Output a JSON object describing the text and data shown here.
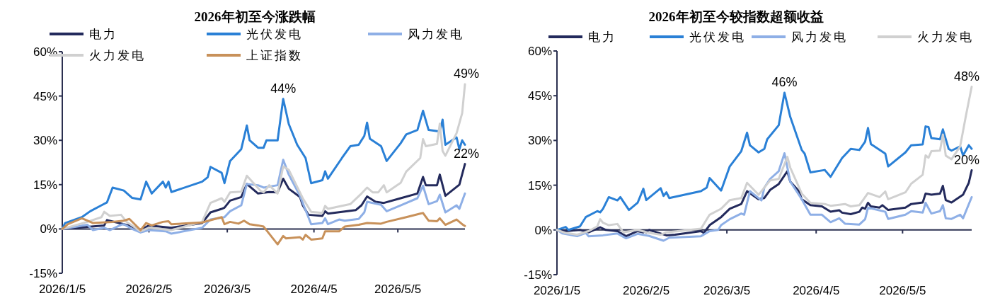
{
  "chart_data": [
    {
      "type": "line",
      "title": "2026年初至今涨跌幅",
      "legend": "top",
      "line_style": "solid",
      "marker": "none",
      "xlim": [
        "2026-01-05",
        "2026-05-29"
      ],
      "xticks": [
        {
          "value": "2026-01-05",
          "label": "2026/1/5"
        },
        {
          "value": "2026-02-05",
          "label": "2026/2/5"
        },
        {
          "value": "2026-03-05",
          "label": "2026/3/5"
        },
        {
          "value": "2026-04-05",
          "label": "2026/4/5"
        },
        {
          "value": "2026-05-05",
          "label": "2026/5/5"
        }
      ],
      "ylim": [
        -15,
        60
      ],
      "yticks": [
        {
          "value": -15,
          "label": "-15%"
        },
        {
          "value": 0,
          "label": "0%"
        },
        {
          "value": 15,
          "label": "15%"
        },
        {
          "value": 30,
          "label": "30%"
        },
        {
          "value": 45,
          "label": "45%"
        },
        {
          "value": 60,
          "label": "60%"
        }
      ],
      "annotations": [
        {
          "text": "44%",
          "x": "2026-03-25",
          "y": 44
        },
        {
          "text": "49%",
          "x": "2026-05-29",
          "y": 49
        },
        {
          "text": "22%",
          "x": "2026-05-29",
          "y": 22
        }
      ],
      "series": [
        {
          "name": "电力",
          "color": "#232a5c",
          "x": [
            "2026-01-05",
            "2026-01-20",
            "2026-01-21",
            "2026-01-27",
            "2026-01-30",
            "2026-02-02",
            "2026-02-05",
            "2026-02-13",
            "2026-02-24",
            "2026-02-27",
            "2026-03-03",
            "2026-03-04",
            "2026-03-06",
            "2026-03-10",
            "2026-03-12",
            "2026-03-16",
            "2026-03-20",
            "2026-03-23",
            "2026-03-25",
            "2026-03-27",
            "2026-03-31",
            "2026-04-01",
            "2026-04-03",
            "2026-04-08",
            "2026-04-09",
            "2026-04-10",
            "2026-04-20",
            "2026-04-22",
            "2026-04-24",
            "2026-04-27",
            "2026-04-30",
            "2026-05-06",
            "2026-05-12",
            "2026-05-14",
            "2026-05-15",
            "2026-05-19",
            "2026-05-20",
            "2026-05-22",
            "2026-05-27",
            "2026-05-29"
          ],
          "values": [
            0,
            1.2,
            3,
            1.6,
            0.8,
            -0.4,
            1.2,
            0.4,
            2,
            5.6,
            6.8,
            7.2,
            9.6,
            10.8,
            15.2,
            12,
            12.5,
            12.4,
            17,
            13.6,
            10.8,
            8,
            4.8,
            4.4,
            6,
            5.2,
            6.4,
            8,
            11,
            9.2,
            8.8,
            10.4,
            12,
            17.6,
            14.8,
            14.8,
            18.4,
            11.2,
            15,
            22
          ]
        },
        {
          "name": "光伏发电",
          "color": "#2a80d6",
          "x": [
            "2026-01-05",
            "2026-01-06",
            "2026-01-12",
            "2026-01-15",
            "2026-01-19",
            "2026-01-21",
            "2026-01-23",
            "2026-01-27",
            "2026-01-30",
            "2026-02-02",
            "2026-02-04",
            "2026-02-06",
            "2026-02-10",
            "2026-02-11",
            "2026-02-12",
            "2026-02-13",
            "2026-02-24",
            "2026-02-26",
            "2026-02-27",
            "2026-03-03",
            "2026-03-04",
            "2026-03-06",
            "2026-03-10",
            "2026-03-12",
            "2026-03-13",
            "2026-03-16",
            "2026-03-18",
            "2026-03-19",
            "2026-03-23",
            "2026-03-25",
            "2026-03-27",
            "2026-03-30",
            "2026-04-02",
            "2026-04-04",
            "2026-04-08",
            "2026-04-09",
            "2026-04-10",
            "2026-04-15",
            "2026-04-18",
            "2026-04-21",
            "2026-04-23",
            "2026-04-24",
            "2026-04-25",
            "2026-04-29",
            "2026-05-01",
            "2026-05-06",
            "2026-05-08",
            "2026-05-12",
            "2026-05-14",
            "2026-05-16",
            "2026-05-20",
            "2026-05-21",
            "2026-05-22",
            "2026-05-26",
            "2026-05-27",
            "2026-05-28",
            "2026-05-29"
          ],
          "values": [
            0,
            2,
            4,
            6,
            8,
            9,
            14,
            13,
            10.5,
            10,
            16,
            12,
            16,
            14,
            16,
            12.5,
            16,
            17.5,
            21,
            19,
            15.5,
            23,
            27,
            35,
            30,
            27.5,
            27.5,
            30,
            30,
            44,
            35.5,
            28.5,
            24,
            15.5,
            16.5,
            19.5,
            17,
            24,
            28,
            28.5,
            31.5,
            36,
            30.5,
            28,
            23,
            29,
            32,
            33.5,
            40,
            33.5,
            33,
            37,
            28.5,
            31,
            27,
            30,
            28.5
          ]
        },
        {
          "name": "风力发电",
          "color": "#8eafe6",
          "x": [
            "2026-01-05",
            "2026-01-14",
            "2026-01-16",
            "2026-01-20",
            "2026-01-22",
            "2026-01-26",
            "2026-01-27",
            "2026-01-30",
            "2026-02-02",
            "2026-02-05",
            "2026-02-11",
            "2026-02-13",
            "2026-02-24",
            "2026-02-27",
            "2026-03-04",
            "2026-03-06",
            "2026-03-10",
            "2026-03-12",
            "2026-03-16",
            "2026-03-18",
            "2026-03-23",
            "2026-03-25",
            "2026-03-27",
            "2026-03-31",
            "2026-04-02",
            "2026-04-04",
            "2026-04-08",
            "2026-04-09",
            "2026-04-10",
            "2026-04-14",
            "2026-04-16",
            "2026-04-21",
            "2026-04-23",
            "2026-04-24",
            "2026-04-29",
            "2026-05-01",
            "2026-05-06",
            "2026-05-12",
            "2026-05-14",
            "2026-05-16",
            "2026-05-19",
            "2026-05-20",
            "2026-05-22",
            "2026-05-26",
            "2026-05-27",
            "2026-05-29"
          ],
          "values": [
            0,
            1.4,
            -0.4,
            0.4,
            -0.4,
            1.4,
            1.6,
            0,
            -1.2,
            -0.4,
            -0.8,
            -1.6,
            0.4,
            3.2,
            4,
            6,
            8,
            15.2,
            14.8,
            14,
            14.8,
            23.4,
            18.4,
            11.2,
            6.4,
            1.6,
            2,
            3.6,
            1.6,
            3.2,
            2.8,
            3.4,
            5.6,
            9.2,
            8.2,
            6,
            8,
            10.4,
            14.6,
            8.4,
            9.4,
            11.6,
            5.6,
            8,
            6.8,
            12
          ]
        },
        {
          "name": "火力发电",
          "color": "#d0d0d0",
          "x": [
            "2026-01-05",
            "2026-01-14",
            "2026-01-19",
            "2026-01-20",
            "2026-01-22",
            "2026-01-26",
            "2026-01-28",
            "2026-02-02",
            "2026-02-05",
            "2026-02-13",
            "2026-02-24",
            "2026-02-27",
            "2026-03-03",
            "2026-03-04",
            "2026-03-06",
            "2026-03-10",
            "2026-03-12",
            "2026-03-17",
            "2026-03-18",
            "2026-03-20",
            "2026-03-23",
            "2026-03-25",
            "2026-03-27",
            "2026-04-01",
            "2026-04-04",
            "2026-04-08",
            "2026-04-09",
            "2026-04-10",
            "2026-04-18",
            "2026-04-22",
            "2026-04-24",
            "2026-04-26",
            "2026-04-28",
            "2026-04-30",
            "2026-05-01",
            "2026-05-06",
            "2026-05-08",
            "2026-05-13",
            "2026-05-14",
            "2026-05-15",
            "2026-05-19",
            "2026-05-20",
            "2026-05-21",
            "2026-05-22",
            "2026-05-26",
            "2026-05-28",
            "2026-05-29"
          ],
          "values": [
            0,
            2.4,
            4,
            5.8,
            4.4,
            4.8,
            2.4,
            -0.8,
            0.4,
            -0.4,
            2.4,
            8.8,
            10.4,
            9.2,
            12.4,
            12.6,
            18,
            12.8,
            12.4,
            14.8,
            12,
            21.2,
            20,
            10.4,
            5.8,
            5.4,
            7.8,
            6.8,
            8.4,
            12,
            14,
            12.4,
            12.4,
            14.8,
            12.4,
            15.6,
            19.4,
            24,
            30.4,
            28,
            28.8,
            35.6,
            26.4,
            24.8,
            32.4,
            39.2,
            49
          ]
        },
        {
          "name": "上证指数",
          "color": "#c8915a",
          "x": [
            "2026-01-05",
            "2026-01-07",
            "2026-01-12",
            "2026-01-14",
            "2026-01-16",
            "2026-01-23",
            "2026-01-27",
            "2026-01-29",
            "2026-02-02",
            "2026-02-04",
            "2026-02-06",
            "2026-02-10",
            "2026-02-12",
            "2026-02-13",
            "2026-02-24",
            "2026-03-03",
            "2026-03-04",
            "2026-03-06",
            "2026-03-09",
            "2026-03-11",
            "2026-03-13",
            "2026-03-16",
            "2026-03-18",
            "2026-03-23",
            "2026-03-25",
            "2026-03-26",
            "2026-03-31",
            "2026-04-01",
            "2026-04-02",
            "2026-04-04",
            "2026-04-08",
            "2026-04-09",
            "2026-04-14",
            "2026-04-16",
            "2026-04-21",
            "2026-04-24",
            "2026-04-29",
            "2026-05-01",
            "2026-05-08",
            "2026-05-13",
            "2026-05-14",
            "2026-05-16",
            "2026-05-19",
            "2026-05-20",
            "2026-05-22",
            "2026-05-26",
            "2026-05-28",
            "2026-05-29"
          ],
          "values": [
            0,
            1.6,
            3.6,
            2.8,
            2,
            2.4,
            2.8,
            3.4,
            -0.4,
            2,
            1.2,
            2.4,
            2.6,
            1.6,
            2.2,
            4,
            1.6,
            2.4,
            1.8,
            2.8,
            1.6,
            1.2,
            0.8,
            -5.2,
            -2.4,
            -3.2,
            -2.8,
            -3.6,
            -2,
            -3.6,
            -3.2,
            -0.8,
            -0.8,
            0.8,
            1.4,
            2,
            1.8,
            2.4,
            4,
            5.2,
            5.4,
            2.8,
            2.6,
            3.6,
            1.4,
            3.2,
            1.6,
            1
          ]
        }
      ]
    },
    {
      "type": "line",
      "title": "2026年初至今较指数超额收益",
      "legend": "top",
      "line_style": "solid",
      "marker": "none",
      "xlim": [
        "2026-01-05",
        "2026-05-29"
      ],
      "xticks": [
        {
          "value": "2026-01-05",
          "label": "2026/1/5"
        },
        {
          "value": "2026-02-05",
          "label": "2026/2/5"
        },
        {
          "value": "2026-03-05",
          "label": "2026/3/5"
        },
        {
          "value": "2026-04-05",
          "label": "2026/4/5"
        },
        {
          "value": "2026-05-05",
          "label": "2026/5/5"
        }
      ],
      "ylim": [
        -15,
        60
      ],
      "yticks": [
        {
          "value": -15,
          "label": "-15%"
        },
        {
          "value": 0,
          "label": "0%"
        },
        {
          "value": 15,
          "label": "15%"
        },
        {
          "value": 30,
          "label": "30%"
        },
        {
          "value": 45,
          "label": "45%"
        },
        {
          "value": 60,
          "label": "60%"
        }
      ],
      "annotations": [
        {
          "text": "46%",
          "x": "2026-03-25",
          "y": 46
        },
        {
          "text": "48%",
          "x": "2026-05-29",
          "y": 48
        },
        {
          "text": "20%",
          "x": "2026-05-29",
          "y": 20
        }
      ],
      "series": [
        {
          "name": "电力",
          "color": "#232a5c",
          "x": [
            "2026-01-05",
            "2026-01-08",
            "2026-01-13",
            "2026-01-16",
            "2026-01-20",
            "2026-01-22",
            "2026-01-26",
            "2026-01-29",
            "2026-02-02",
            "2026-02-04",
            "2026-02-06",
            "2026-02-10",
            "2026-02-12",
            "2026-02-15",
            "2026-02-24",
            "2026-02-25",
            "2026-02-27",
            "2026-03-03",
            "2026-03-06",
            "2026-03-10",
            "2026-03-12",
            "2026-03-16",
            "2026-03-18",
            "2026-03-20",
            "2026-03-23",
            "2026-03-26",
            "2026-03-27",
            "2026-03-30",
            "2026-03-31",
            "2026-04-03",
            "2026-04-07",
            "2026-04-10",
            "2026-04-13",
            "2026-04-14",
            "2026-04-17",
            "2026-04-20",
            "2026-04-21",
            "2026-04-22",
            "2026-04-23",
            "2026-04-24",
            "2026-04-27",
            "2026-04-28",
            "2026-04-30",
            "2026-05-06",
            "2026-05-08",
            "2026-05-12",
            "2026-05-13",
            "2026-05-15",
            "2026-05-18",
            "2026-05-19",
            "2026-05-20",
            "2026-05-22",
            "2026-05-26",
            "2026-05-28",
            "2026-05-29"
          ],
          "values": [
            0,
            -0.4,
            0,
            -0.8,
            0.9,
            0,
            -0.4,
            -2.1,
            -0.4,
            -0.8,
            0,
            -1.2,
            -1.8,
            -1.6,
            -0.4,
            -1,
            1.6,
            4.3,
            7.1,
            8.7,
            13,
            10.3,
            10.7,
            13.4,
            15.4,
            19.7,
            16.2,
            13,
            10.3,
            8.3,
            7.9,
            6.1,
            6.6,
            5.8,
            5.3,
            6.1,
            7.5,
            7.1,
            9.1,
            7.9,
            7.5,
            8.3,
            6.7,
            7.5,
            8.7,
            9.2,
            12.2,
            11.8,
            12.2,
            14.8,
            10,
            9.2,
            11.8,
            15.8,
            20
          ]
        },
        {
          "name": "光伏发电",
          "color": "#2a80d6",
          "x": [
            "2026-01-05",
            "2026-01-08",
            "2026-01-09",
            "2026-01-13",
            "2026-01-15",
            "2026-01-19",
            "2026-01-20",
            "2026-01-21",
            "2026-01-23",
            "2026-01-26",
            "2026-01-27",
            "2026-01-30",
            "2026-02-02",
            "2026-02-04",
            "2026-02-05",
            "2026-02-10",
            "2026-02-11",
            "2026-02-12",
            "2026-02-13",
            "2026-02-24",
            "2026-02-26",
            "2026-02-27",
            "2026-03-03",
            "2026-03-06",
            "2026-03-10",
            "2026-03-12",
            "2026-03-13",
            "2026-03-16",
            "2026-03-18",
            "2026-03-19",
            "2026-03-23",
            "2026-03-25",
            "2026-03-27",
            "2026-03-31",
            "2026-04-01",
            "2026-04-03",
            "2026-04-08",
            "2026-04-10",
            "2026-04-14",
            "2026-04-17",
            "2026-04-20",
            "2026-04-22",
            "2026-04-23",
            "2026-04-24",
            "2026-04-29",
            "2026-04-30",
            "2026-05-06",
            "2026-05-08",
            "2026-05-12",
            "2026-05-13",
            "2026-05-14",
            "2026-05-15",
            "2026-05-18",
            "2026-05-19",
            "2026-05-21",
            "2026-05-22",
            "2026-05-25",
            "2026-05-26",
            "2026-05-28",
            "2026-05-29"
          ],
          "values": [
            0,
            1,
            0,
            1.2,
            4.3,
            6.3,
            5.9,
            7.1,
            11,
            9.9,
            11,
            6.7,
            9.1,
            13.8,
            10,
            14,
            11.4,
            12.6,
            10.7,
            13,
            14.2,
            17.4,
            13.2,
            21.3,
            26.4,
            32.6,
            28.4,
            26,
            27.2,
            30.4,
            35.1,
            46,
            37.9,
            26.8,
            25.6,
            19.3,
            20.1,
            17.8,
            24.1,
            27.2,
            26.8,
            29.6,
            34.2,
            28.8,
            25.6,
            21.3,
            26,
            28.4,
            28.7,
            34.7,
            34.5,
            30.8,
            30.4,
            33.7,
            27.2,
            26.6,
            28,
            25,
            28.4,
            27.2
          ]
        },
        {
          "name": "风力发电",
          "color": "#8eafe6",
          "x": [
            "2026-01-05",
            "2026-01-07",
            "2026-01-12",
            "2026-01-15",
            "2026-01-16",
            "2026-01-21",
            "2026-01-26",
            "2026-01-29",
            "2026-02-02",
            "2026-02-06",
            "2026-02-11",
            "2026-02-13",
            "2026-02-24",
            "2026-02-27",
            "2026-03-02",
            "2026-03-03",
            "2026-03-06",
            "2026-03-10",
            "2026-03-11",
            "2026-03-13",
            "2026-03-17",
            "2026-03-18",
            "2026-03-20",
            "2026-03-23",
            "2026-03-25",
            "2026-03-27",
            "2026-03-31",
            "2026-04-03",
            "2026-04-07",
            "2026-04-10",
            "2026-04-13",
            "2026-04-15",
            "2026-04-20",
            "2026-04-22",
            "2026-04-23",
            "2026-04-29",
            "2026-04-30",
            "2026-05-06",
            "2026-05-08",
            "2026-05-12",
            "2026-05-13",
            "2026-05-15",
            "2026-05-18",
            "2026-05-19",
            "2026-05-20",
            "2026-05-22",
            "2026-05-25",
            "2026-05-26",
            "2026-05-29"
          ],
          "values": [
            0,
            -1.2,
            -2.1,
            -1,
            -2.1,
            -1.8,
            -1.2,
            -2.8,
            -1.3,
            -2,
            -3.6,
            -2.6,
            -2.1,
            -0.4,
            0,
            1.6,
            3.6,
            5.5,
            5.1,
            13,
            9.9,
            14.2,
            17.1,
            19.7,
            25.7,
            16.2,
            10.3,
            5.1,
            5.1,
            2.6,
            3.9,
            2.1,
            1.8,
            3.6,
            7.5,
            6.1,
            3.7,
            5.1,
            6.3,
            5.8,
            9.1,
            5.5,
            6.3,
            8.3,
            3.9,
            3.7,
            5.1,
            3.9,
            11
          ]
        },
        {
          "name": "火力发电",
          "color": "#d0d0d0",
          "x": [
            "2026-01-05",
            "2026-01-08",
            "2026-01-12",
            "2026-01-16",
            "2026-01-19",
            "2026-01-20",
            "2026-01-21",
            "2026-01-23",
            "2026-01-26",
            "2026-01-28",
            "2026-02-02",
            "2026-02-06",
            "2026-02-10",
            "2026-02-12",
            "2026-02-24",
            "2026-02-27",
            "2026-03-03",
            "2026-03-06",
            "2026-03-10",
            "2026-03-12",
            "2026-03-16",
            "2026-03-20",
            "2026-03-23",
            "2026-03-26",
            "2026-03-27",
            "2026-03-31",
            "2026-04-03",
            "2026-04-08",
            "2026-04-10",
            "2026-04-15",
            "2026-04-17",
            "2026-04-20",
            "2026-04-23",
            "2026-04-27",
            "2026-04-29",
            "2026-04-30",
            "2026-05-06",
            "2026-05-08",
            "2026-05-12",
            "2026-05-13",
            "2026-05-14",
            "2026-05-15",
            "2026-05-18",
            "2026-05-19",
            "2026-05-20",
            "2026-05-22",
            "2026-05-25",
            "2026-05-27",
            "2026-05-29"
          ],
          "values": [
            0,
            -1,
            -1.6,
            -0.4,
            1.2,
            3.6,
            2.4,
            1.6,
            2,
            -0.8,
            0,
            -1,
            -1.6,
            -0.8,
            0.4,
            5.1,
            7.1,
            10,
            10.7,
            15.8,
            11.8,
            16.6,
            17.1,
            24.5,
            20.9,
            12.2,
            9.1,
            8.7,
            8.1,
            8.7,
            7.9,
            8.3,
            12.4,
            11,
            12.9,
            10.3,
            12.6,
            15.5,
            18.5,
            25,
            24.2,
            26.4,
            26.6,
            32,
            24.9,
            23.7,
            28,
            38.3,
            48
          ]
        }
      ]
    }
  ]
}
